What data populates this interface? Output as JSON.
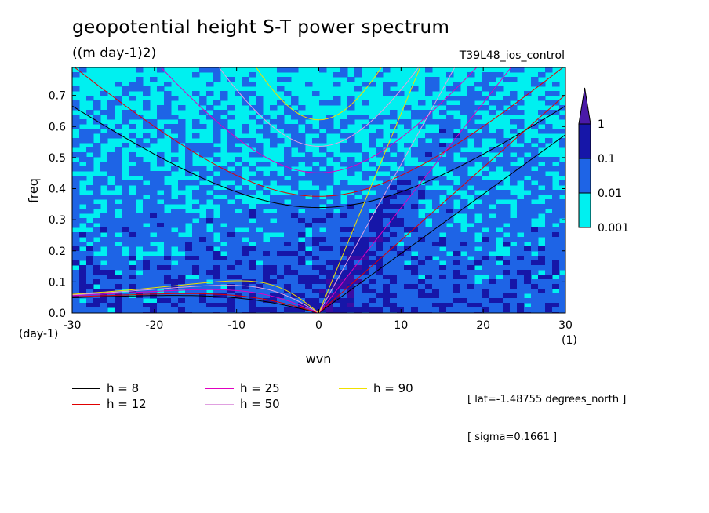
{
  "header": {
    "title": "geopotential height S-T power spectrum",
    "subtitle": "((m day-1)2)",
    "run": "T39L48_ios_control"
  },
  "chart_data": {
    "type": "heatmap",
    "title": "geopotential height S-T power spectrum",
    "subtitle": "((m day-1)2)",
    "xlabel": "wvn",
    "ylabel": "freq",
    "x_unit_label": "(1)",
    "y_unit_label": "(day-1)",
    "xlim": [
      -30,
      30
    ],
    "ylim": [
      0,
      0.79
    ],
    "x_ticks": [
      -30,
      -20,
      -10,
      0,
      10,
      20,
      30
    ],
    "x_tick_labels": [
      "-30",
      "-20",
      "-10",
      "0",
      "10",
      "20",
      "30"
    ],
    "y_ticks": [
      0.0,
      0.1,
      0.2,
      0.3,
      0.4,
      0.5,
      0.6,
      0.7
    ],
    "y_tick_labels": [
      "0.0",
      "0.1",
      "0.2",
      "0.3",
      "0.4",
      "0.5",
      "0.6",
      "0.7"
    ],
    "colorbar": {
      "levels": [
        "1",
        "0.1",
        "0.01",
        "0.001"
      ],
      "colors": [
        "#3a0ca3",
        "#1616a8",
        "#1e64e6",
        "#00f0f0"
      ],
      "top_color": "#4a1aa8",
      "extend": "max"
    },
    "legend": [
      {
        "label": "h =  8",
        "color": "#000000"
      },
      {
        "label": "h = 12",
        "color": "#e00000"
      },
      {
        "label": "h = 25",
        "color": "#e000c0"
      },
      {
        "label": "h = 50",
        "color": "#e0a0e0"
      },
      {
        "label": "h = 90",
        "color": "#f0e000"
      }
    ],
    "series": [
      {
        "name": "h =  8",
        "equivalent_depth": 8
      },
      {
        "name": "h = 12",
        "equivalent_depth": 12
      },
      {
        "name": "h = 25",
        "equivalent_depth": 25
      },
      {
        "name": "h = 50",
        "equivalent_depth": 50
      },
      {
        "name": "h = 90",
        "equivalent_depth": 90
      }
    ],
    "grid": false
  },
  "info": {
    "lat": "[ lat=-1.48755 degrees_north ]",
    "sigma": "[ sigma=0.1661 ]"
  },
  "colors": {
    "background": "#ffffff",
    "field_low": "#00f0f0",
    "field_mid": "#1e64e6",
    "field_high": "#1616a8",
    "field_top": "#3a0ca3",
    "white_gaps": "#ffffff"
  }
}
